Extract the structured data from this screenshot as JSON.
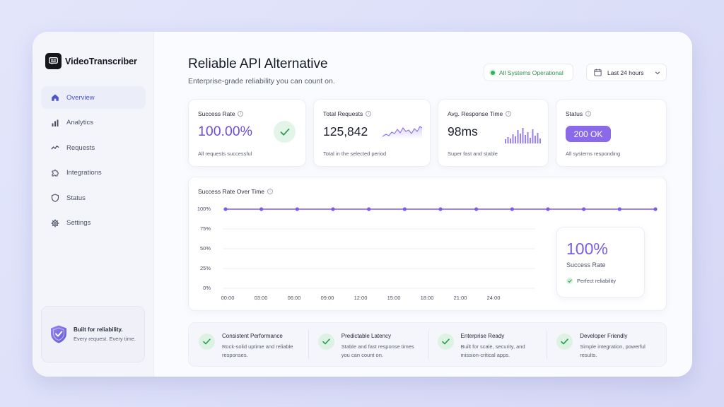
{
  "brand": {
    "name": "VideoTranscriber"
  },
  "sidebar": {
    "items": [
      {
        "label": "Overview",
        "icon": "home-icon",
        "active": true
      },
      {
        "label": "Analytics",
        "icon": "bar-chart-icon"
      },
      {
        "label": "Requests",
        "icon": "activity-icon"
      },
      {
        "label": "Integrations",
        "icon": "puzzle-icon"
      },
      {
        "label": "Status",
        "icon": "shield-icon"
      },
      {
        "label": "Settings",
        "icon": "gear-icon"
      }
    ],
    "promo": {
      "title": "Built for reliability.",
      "subtitle": "Every request. Every time.",
      "icon": "shield-check-icon"
    }
  },
  "header": {
    "title": "Reliable API Alternative",
    "subtitle": "Enterprise-grade reliability you can count on.",
    "status": "All Systems Operational",
    "range": "Last 24 hours"
  },
  "cards": {
    "success": {
      "label": "Success Rate",
      "value": "100.00%",
      "foot": "All requests successful"
    },
    "requests": {
      "label": "Total Requests",
      "value": "125,842",
      "foot": "Total in the selected period"
    },
    "response": {
      "label": "Avg. Response Time",
      "value": "98ms",
      "foot": "Super fast and stable"
    },
    "status": {
      "label": "Status",
      "value": "200 OK",
      "foot": "All systems responding"
    }
  },
  "chart": {
    "title": "Success Rate Over Time",
    "summary": {
      "value": "100%",
      "label": "Success Rate",
      "note": "Perfect reliability"
    }
  },
  "chart_data": {
    "type": "line",
    "title": "Success Rate Over Time",
    "y_ticks": [
      "100%",
      "75%",
      "50%",
      "25%",
      "0%"
    ],
    "x_ticks": [
      "00:00",
      "03:00",
      "06:00",
      "09:00",
      "12:00",
      "15:00",
      "18:00",
      "21:00",
      "24:00"
    ],
    "ylim": [
      0,
      100
    ],
    "grid": true,
    "series": [
      {
        "values": [
          100,
          100,
          100,
          100,
          100,
          100,
          100,
          100,
          100,
          100,
          100,
          100,
          100
        ]
      }
    ],
    "color": "#7b5fe0"
  },
  "features": [
    {
      "title": "Consistent Performance",
      "desc": "Rock-solid uptime and reliable responses."
    },
    {
      "title": "Predictable Latency",
      "desc": "Stable and fast response times you can count on."
    },
    {
      "title": "Enterprise Ready",
      "desc": "Built for scale, security, and mission-critical apps."
    },
    {
      "title": "Developer Friendly",
      "desc": "Simple integration, powerful results."
    }
  ],
  "colors": {
    "accent": "#6c4fd8",
    "success": "#34b35e",
    "active_nav": "#4c54c9"
  }
}
